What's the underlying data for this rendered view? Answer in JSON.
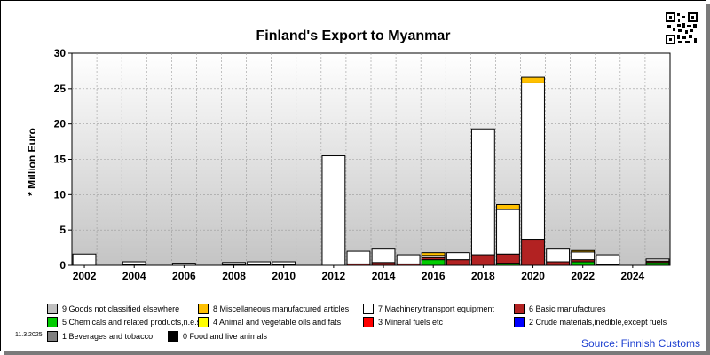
{
  "chart_data": {
    "type": "bar",
    "title": "Finland's Export to Myanmar",
    "ylabel": "* Million Euro",
    "xlabel": "",
    "ylim": [
      0,
      30
    ],
    "y_ticks": [
      0,
      5,
      10,
      15,
      20,
      25,
      30
    ],
    "x_tick_labels": [
      "2002",
      "2004",
      "2006",
      "2008",
      "2010",
      "2012",
      "2014",
      "2016",
      "2018",
      "2020",
      "2022",
      "2024"
    ],
    "grid": true,
    "legend_position": "bottom",
    "categories": [
      "2002",
      "2003",
      "2004",
      "2005",
      "2006",
      "2007",
      "2008",
      "2009",
      "2010",
      "2011",
      "2012",
      "2013",
      "2014",
      "2015",
      "2016",
      "2017",
      "2018",
      "2019",
      "2020",
      "2021",
      "2022",
      "2023",
      "2024",
      "2025"
    ],
    "series": [
      {
        "name": "0 Food and live animals",
        "color": "#000000",
        "values": [
          0,
          0,
          0,
          0,
          0,
          0,
          0,
          0,
          0,
          0,
          0,
          0,
          0,
          0,
          0,
          0,
          0,
          0,
          0,
          0,
          0,
          0,
          0,
          0
        ]
      },
      {
        "name": "1 Beverages and tobacco",
        "color": "#808080",
        "values": [
          0,
          0,
          0,
          0,
          0,
          0,
          0,
          0,
          0,
          0,
          0,
          0,
          0,
          0,
          0,
          0,
          0,
          0,
          0,
          0,
          0,
          0,
          0,
          0
        ]
      },
      {
        "name": "2 Crude materials,inedible,except fuels",
        "color": "#0000ff",
        "values": [
          0,
          0,
          0,
          0,
          0,
          0,
          0,
          0,
          0,
          0,
          0,
          0,
          0,
          0,
          0,
          0,
          0,
          0,
          0,
          0,
          0,
          0,
          0,
          0
        ]
      },
      {
        "name": "3 Mineral fuels etc",
        "color": "#ff0000",
        "values": [
          0,
          0,
          0,
          0,
          0,
          0,
          0,
          0,
          0,
          0,
          0,
          0,
          0,
          0,
          0,
          0,
          0,
          0,
          0,
          0,
          0,
          0,
          0,
          0
        ]
      },
      {
        "name": "4 Animal and vegetable oils and fats",
        "color": "#ffff00",
        "values": [
          0,
          0,
          0,
          0,
          0,
          0,
          0,
          0,
          0,
          0,
          0,
          0,
          0,
          0,
          0,
          0,
          0,
          0,
          0,
          0,
          0,
          0,
          0,
          0
        ]
      },
      {
        "name": "5 Chemicals and related products,n.e.s.",
        "color": "#00cc00",
        "values": [
          0,
          0,
          0,
          0,
          0,
          0,
          0,
          0,
          0,
          0,
          0,
          0,
          0,
          0,
          0.8,
          0,
          0,
          0.3,
          0,
          0,
          0.5,
          0,
          0,
          0.4
        ]
      },
      {
        "name": "6 Basic manufactures",
        "color": "#b22222",
        "values": [
          0,
          0,
          0.1,
          0,
          0,
          0,
          0.1,
          0.1,
          0.1,
          0,
          0,
          0.2,
          0.4,
          0.2,
          0.3,
          0.8,
          1.5,
          1.3,
          3.7,
          0.5,
          0.3,
          0.1,
          0,
          0.2
        ]
      },
      {
        "name": "7 Machinery,transport equipment",
        "color": "#ffffff",
        "values": [
          1.6,
          0,
          0.4,
          0,
          0.3,
          0,
          0.3,
          0.4,
          0.4,
          0,
          15.5,
          1.8,
          1.9,
          1.3,
          0.3,
          1,
          17.8,
          6.3,
          22.1,
          1.8,
          1.1,
          1.4,
          0,
          0.3
        ]
      },
      {
        "name": "8 Miscellaneous manufactured articles",
        "color": "#ffc000",
        "values": [
          0,
          0,
          0,
          0,
          0,
          0,
          0,
          0,
          0,
          0,
          0,
          0,
          0,
          0,
          0.4,
          0,
          0,
          0.7,
          0.8,
          0,
          0.2,
          0,
          0,
          0
        ]
      },
      {
        "name": "9 Goods not classified elsewhere",
        "color": "#c0c0c0",
        "values": [
          0,
          0,
          0,
          0,
          0,
          0,
          0,
          0,
          0,
          0,
          0,
          0,
          0,
          0,
          0,
          0,
          0,
          0,
          0,
          0,
          0,
          0,
          0,
          0
        ]
      }
    ]
  },
  "legend": [
    {
      "label": "9 Goods not classified elsewhere",
      "color": "#c0c0c0"
    },
    {
      "label": "8 Miscellaneous manufactured articles",
      "color": "#ffc000"
    },
    {
      "label": "7 Machinery,transport equipment",
      "color": "#ffffff"
    },
    {
      "label": "6 Basic manufactures",
      "color": "#b22222"
    },
    {
      "label": "5 Chemicals and related products,n.e.s.",
      "color": "#00cc00"
    },
    {
      "label": "4 Animal and vegetable oils and fats",
      "color": "#ffff00"
    },
    {
      "label": "3 Mineral fuels etc",
      "color": "#ff0000"
    },
    {
      "label": "2 Crude materials,inedible,except fuels",
      "color": "#0000ff"
    },
    {
      "label": "1 Beverages and tobacco",
      "color": "#808080"
    },
    {
      "label": "0 Food and live animals",
      "color": "#000000"
    }
  ],
  "footer": {
    "date": "11.3.2025",
    "source": "Source: Finnish Customs"
  },
  "qr_icon": "qr-code-icon"
}
